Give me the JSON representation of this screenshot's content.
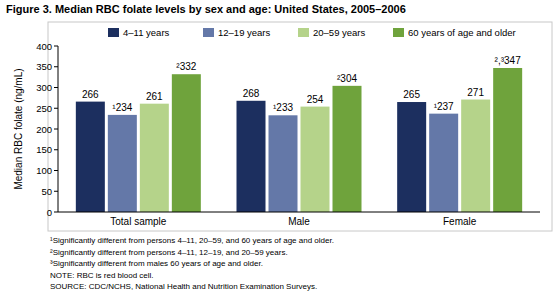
{
  "chart_data": {
    "type": "bar",
    "title": "Figure 3. Median RBC folate levels by sex and age: United States, 2005–2006",
    "y_label": "Median RBC folate (ng/mL)",
    "categories": [
      "Total sample",
      "Male",
      "Female"
    ],
    "series": [
      {
        "name": "4–11 years",
        "color": "#1c2f5f",
        "values": [
          266,
          268,
          265
        ]
      },
      {
        "name": "12–19 years",
        "color": "#6478a8",
        "values": [
          234,
          233,
          237
        ],
        "value_labels": [
          "¹234",
          "¹233",
          "¹237"
        ]
      },
      {
        "name": "20–59 years",
        "color": "#b5d38a",
        "values": [
          261,
          254,
          271
        ]
      },
      {
        "name": "60 years of age and older",
        "color": "#6fa33c",
        "values": [
          332,
          304,
          347
        ],
        "value_labels": [
          "²332",
          "²304",
          "²,³347"
        ]
      }
    ],
    "ylim": [
      0,
      400
    ],
    "yticks": [
      0,
      50,
      100,
      150,
      200,
      250,
      300,
      350,
      400
    ],
    "grid": false,
    "data_labels": true,
    "legend": "top",
    "annotations": [
      "¹Significantly different from persons 4–11, 20–59, and 60 years of age and older.",
      "²Significantly different from persons 4–11, 12–19, and 20–59 years.",
      "³Significantly different from males 60 years of age and older.",
      "NOTE: RBC is red blood cell.",
      "SOURCE: CDC/NCHS, National Health and Nutrition Examination Surveys."
    ]
  }
}
